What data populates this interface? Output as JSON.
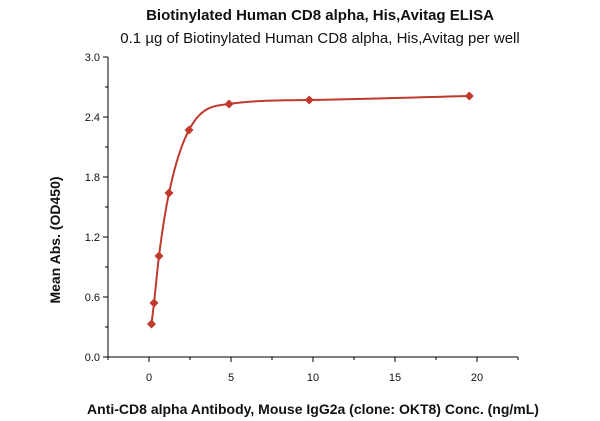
{
  "chart_data": {
    "type": "scatter",
    "title": "Biotinylated Human CD8 alpha, His,Avitag ELISA",
    "subtitle": "0.1 µg of Biotinylated Human CD8 alpha, His,Avitag per well",
    "xlabel": "Anti-CD8 alpha Antibody, Mouse IgG2a (clone: OKT8) Conc. (ng/mL)",
    "ylabel": "Mean Abs. (OD450)",
    "xlim": [
      -2.5,
      22.5
    ],
    "ylim": [
      0.0,
      3.0
    ],
    "xticks": [
      0,
      5,
      10,
      15,
      20
    ],
    "xtick_labels": [
      "0",
      "5",
      "10",
      "15",
      "20"
    ],
    "yticks": [
      0.0,
      0.6,
      1.2,
      1.8,
      2.4,
      3.0
    ],
    "ytick_labels": [
      "0.0",
      "0.6",
      "1.2",
      "1.8",
      "2.4",
      "3.0"
    ],
    "grid": false,
    "legend": false,
    "color": "#c0392b",
    "series": [
      {
        "marker": "diamond",
        "fit_line": true,
        "x": [
          0.153,
          0.305,
          0.61,
          1.22,
          2.44,
          4.88,
          9.77,
          19.53
        ],
        "y": [
          0.33,
          0.54,
          1.01,
          1.64,
          2.27,
          2.53,
          2.57,
          2.61
        ]
      }
    ]
  }
}
